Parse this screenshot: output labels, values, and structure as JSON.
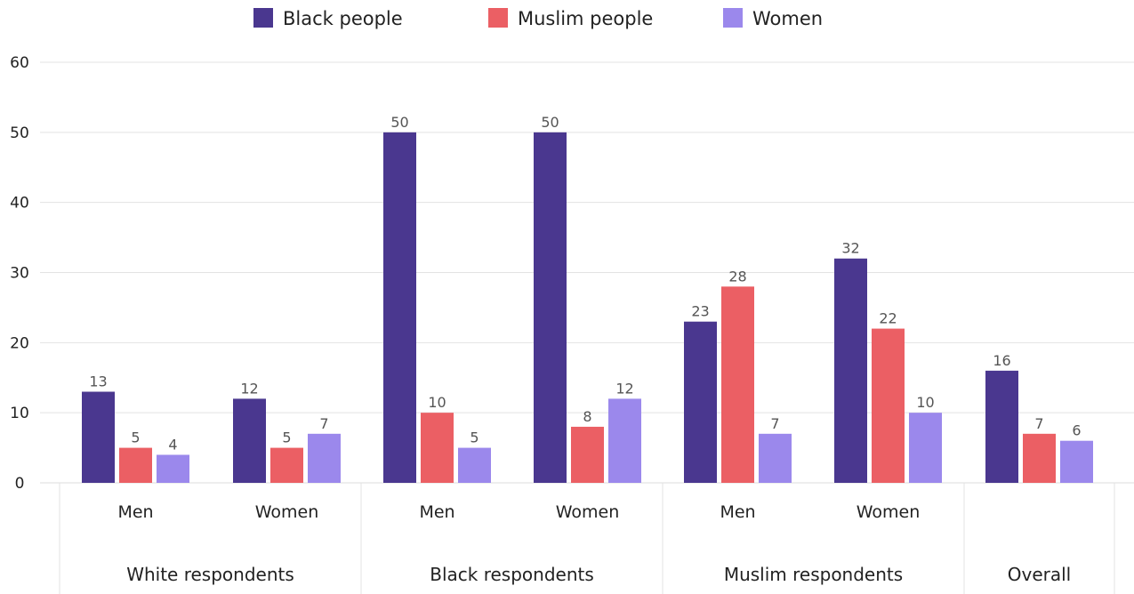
{
  "chart_data": {
    "type": "bar",
    "title": "",
    "xlabel": "",
    "ylabel": "",
    "ylim": [
      0,
      60
    ],
    "yticks": [
      0,
      10,
      20,
      30,
      40,
      50,
      60
    ],
    "grid": true,
    "legend_position": "top",
    "groups": [
      {
        "label": "White respondents",
        "categories": [
          "Men",
          "Women"
        ]
      },
      {
        "label": "Black respondents",
        "categories": [
          "Men",
          "Women"
        ]
      },
      {
        "label": "Muslim respondents",
        "categories": [
          "Men",
          "Women"
        ]
      },
      {
        "label": "Overall",
        "categories": [
          ""
        ]
      }
    ],
    "series": [
      {
        "name": "Black people",
        "color": "#4a378f",
        "values": [
          13,
          12,
          50,
          50,
          23,
          32,
          16
        ],
        "labels": [
          "13",
          "12",
          "50",
          "50",
          "23",
          "32",
          "16"
        ]
      },
      {
        "name": "Muslim people",
        "color": "#eb5f64",
        "values": [
          5,
          5,
          10,
          8,
          28,
          22,
          7
        ],
        "labels": [
          "5",
          "5",
          "10",
          "8",
          "28",
          "22",
          "7"
        ]
      },
      {
        "name": "Women",
        "color": "#9b88ec",
        "values": [
          4,
          7,
          5,
          12,
          7,
          10,
          6
        ],
        "labels": [
          "4",
          "7",
          "5",
          "12",
          "7",
          "10",
          "6"
        ]
      }
    ]
  }
}
